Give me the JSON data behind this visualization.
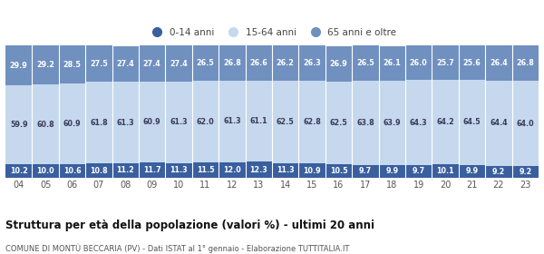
{
  "years": [
    "04",
    "05",
    "06",
    "07",
    "08",
    "09",
    "10",
    "11",
    "12",
    "13",
    "14",
    "15",
    "16",
    "17",
    "18",
    "19",
    "20",
    "21",
    "22",
    "23"
  ],
  "young": [
    10.2,
    10.0,
    10.6,
    10.8,
    11.2,
    11.7,
    11.3,
    11.5,
    12.0,
    12.3,
    11.3,
    10.9,
    10.5,
    9.7,
    9.9,
    9.7,
    10.1,
    9.9,
    9.2,
    9.2
  ],
  "adult": [
    59.9,
    60.8,
    60.9,
    61.8,
    61.3,
    60.9,
    61.3,
    62.0,
    61.3,
    61.1,
    62.5,
    62.8,
    62.5,
    63.8,
    63.9,
    64.3,
    64.2,
    64.5,
    64.4,
    64.0
  ],
  "old": [
    29.9,
    29.2,
    28.5,
    27.5,
    27.4,
    27.4,
    27.4,
    26.5,
    26.8,
    26.6,
    26.2,
    26.3,
    26.9,
    26.5,
    26.1,
    26.0,
    25.7,
    25.6,
    26.4,
    26.8
  ],
  "color_young": "#3a5f9f",
  "color_adult": "#c5d8ee",
  "color_old": "#7090bf",
  "legend_labels": [
    "0-14 anni",
    "15-64 anni",
    "65 anni e oltre"
  ],
  "title": "Struttura per età della popolazione (valori %) - ultimi 20 anni",
  "subtitle": "COMUNE DI MONTÙ BECCARIA (PV) - Dati ISTAT al 1° gennaio - Elaborazione TUTTITALIA.IT",
  "font_size_labels": 5.8,
  "font_size_xticks": 7.0,
  "font_size_legend": 7.5,
  "font_size_title": 8.5,
  "font_size_subtitle": 6.0,
  "background_color": "#ffffff",
  "adult_label_color": "#3a3a5a"
}
